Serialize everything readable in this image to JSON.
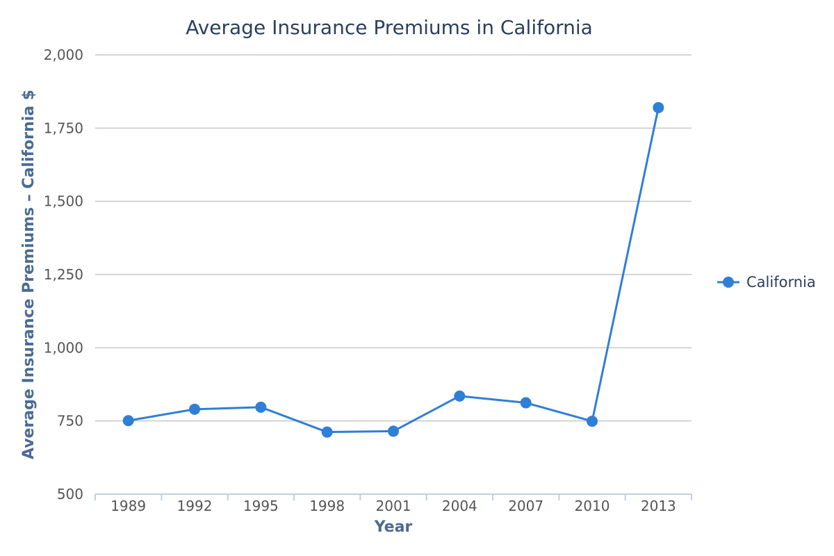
{
  "chart_data": {
    "type": "line",
    "title": "Average Insurance Premiums in California",
    "xlabel": "Year",
    "ylabel": "Average Insurance Premiums – California $",
    "categories": [
      "1989",
      "1992",
      "1995",
      "1998",
      "2001",
      "2004",
      "2007",
      "2010",
      "2013"
    ],
    "series": [
      {
        "name": "California",
        "color": "#2f7ed8",
        "values": [
          751,
          790,
          797,
          712,
          715,
          835,
          812,
          749,
          1820
        ]
      }
    ],
    "ylim": [
      500,
      2000
    ],
    "yticks": [
      500,
      750,
      1000,
      1250,
      1500,
      1750,
      2000
    ],
    "ytick_labels": [
      "500",
      "750",
      "1,000",
      "1,250",
      "1,500",
      "1,750",
      "2,000"
    ],
    "grid": true,
    "legend_position": "right"
  }
}
